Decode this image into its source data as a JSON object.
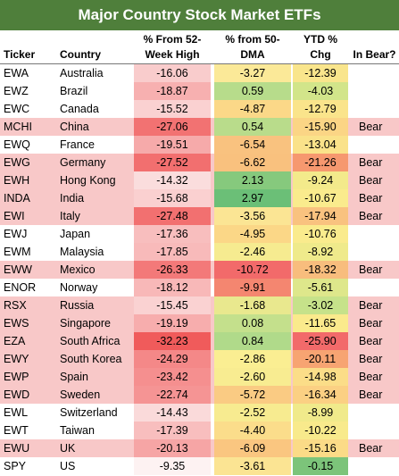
{
  "title": "Major Country Stock Market ETFs",
  "headers": {
    "ticker": "Ticker",
    "country": "Country",
    "from52": "% From 52-Week High",
    "from50": "% from 50-DMA",
    "ytd": "YTD % Chg",
    "bear": "In Bear?"
  },
  "rows": [
    {
      "ticker": "EWA",
      "country": "Australia",
      "from52": "-16.06",
      "from50": "-3.27",
      "ytd": "-12.39",
      "bear": "",
      "c52": "#f9cccc",
      "c50": "#fbe998",
      "cytd": "#f9e58c"
    },
    {
      "ticker": "EWZ",
      "country": "Brazil",
      "from52": "-18.87",
      "from50": "0.59",
      "ytd": "-4.03",
      "bear": "",
      "c52": "#f7b0b0",
      "c50": "#b7dc8b",
      "cytd": "#d2e58a"
    },
    {
      "ticker": "EWC",
      "country": "Canada",
      "from52": "-15.52",
      "from50": "-4.87",
      "ytd": "-12.79",
      "bear": "",
      "c52": "#fad1d1",
      "c50": "#fbd888",
      "cytd": "#fae48b"
    },
    {
      "ticker": "MCHI",
      "country": "China",
      "from52": "-27.06",
      "from50": "0.54",
      "ytd": "-15.90",
      "bear": "Bear",
      "c52": "#f27272",
      "c50": "#b9dc8b",
      "cytd": "#fbd585"
    },
    {
      "ticker": "EWQ",
      "country": "France",
      "from52": "-19.51",
      "from50": "-6.54",
      "ytd": "-13.04",
      "bear": "",
      "c52": "#f6aaaa",
      "c50": "#f9c27f",
      "cytd": "#fae28a"
    },
    {
      "ticker": "EWG",
      "country": "Germany",
      "from52": "-27.52",
      "from50": "-6.62",
      "ytd": "-21.26",
      "bear": "Bear",
      "c52": "#f26f6f",
      "c50": "#f9c17e",
      "cytd": "#f6986f"
    },
    {
      "ticker": "EWH",
      "country": "Hong Kong",
      "from52": "-14.32",
      "from50": "2.13",
      "ytd": "-9.24",
      "bear": "Bear",
      "c52": "#fadddd",
      "c50": "#86c97d",
      "cytd": "#f3ea8b"
    },
    {
      "ticker": "INDA",
      "country": "India",
      "from52": "-15.68",
      "from50": "2.97",
      "ytd": "-10.67",
      "bear": "Bear",
      "c52": "#fad0d0",
      "c50": "#6bbf77",
      "cytd": "#faeb8d"
    },
    {
      "ticker": "EWI",
      "country": "Italy",
      "from52": "-27.48",
      "from50": "-3.56",
      "ytd": "-17.94",
      "bear": "Bear",
      "c52": "#f27070",
      "c50": "#fbe594",
      "cytd": "#f9c27f"
    },
    {
      "ticker": "EWJ",
      "country": "Japan",
      "from52": "-17.36",
      "from50": "-4.95",
      "ytd": "-10.76",
      "bear": "",
      "c52": "#f8bebe",
      "c50": "#fbd787",
      "cytd": "#faeb8d"
    },
    {
      "ticker": "EWM",
      "country": "Malaysia",
      "from52": "-17.85",
      "from50": "-2.46",
      "ytd": "-8.92",
      "bear": "",
      "c52": "#f8baba",
      "c50": "#f6eb90",
      "cytd": "#efea8b"
    },
    {
      "ticker": "EWW",
      "country": "Mexico",
      "from52": "-26.33",
      "from50": "-10.72",
      "ytd": "-18.32",
      "bear": "Bear",
      "c52": "#f37979",
      "c50": "#f26a6a",
      "cytd": "#f8bd7d"
    },
    {
      "ticker": "ENOR",
      "country": "Norway",
      "from52": "-18.12",
      "from50": "-9.91",
      "ytd": "-5.61",
      "bear": "",
      "c52": "#f8b8b8",
      "c50": "#f48670",
      "cytd": "#dee78b"
    },
    {
      "ticker": "RSX",
      "country": "Russia",
      "from52": "-15.45",
      "from50": "-1.68",
      "ytd": "-3.02",
      "bear": "Bear",
      "c52": "#fad2d2",
      "c50": "#e9e88e",
      "cytd": "#c6e28a"
    },
    {
      "ticker": "EWS",
      "country": "Singapore",
      "from52": "-19.19",
      "from50": "0.08",
      "ytd": "-11.65",
      "bear": "Bear",
      "c52": "#f7adad",
      "c50": "#c4e08c",
      "cytd": "#faea8c"
    },
    {
      "ticker": "EZA",
      "country": "South Africa",
      "from52": "-32.23",
      "from50": "0.84",
      "ytd": "-25.90",
      "bear": "Bear",
      "c52": "#f05b5b",
      "c50": "#b0da8a",
      "cytd": "#f26a6a"
    },
    {
      "ticker": "EWY",
      "country": "South Korea",
      "from52": "-24.29",
      "from50": "-2.86",
      "ytd": "-20.11",
      "bear": "Bear",
      "c52": "#f48888",
      "c50": "#faee92",
      "cytd": "#f7a472"
    },
    {
      "ticker": "EWP",
      "country": "Spain",
      "from52": "-23.42",
      "from50": "-2.60",
      "ytd": "-14.98",
      "bear": "Bear",
      "c52": "#f58f8f",
      "c50": "#f8ec91",
      "cytd": "#fbdd88"
    },
    {
      "ticker": "EWD",
      "country": "Sweden",
      "from52": "-22.74",
      "from50": "-5.72",
      "ytd": "-16.34",
      "bear": "Bear",
      "c52": "#f59494",
      "c50": "#facb83",
      "cytd": "#fbd083"
    },
    {
      "ticker": "EWL",
      "country": "Switzerland",
      "from52": "-14.43",
      "from50": "-2.52",
      "ytd": "-8.99",
      "bear": "",
      "c52": "#fadada",
      "c50": "#f7eb90",
      "cytd": "#f0ea8b"
    },
    {
      "ticker": "EWT",
      "country": "Taiwan",
      "from52": "-17.39",
      "from50": "-4.40",
      "ytd": "-10.22",
      "bear": "",
      "c52": "#f8bebe",
      "c50": "#fbdd8b",
      "cytd": "#f8ea8c"
    },
    {
      "ticker": "EWU",
      "country": "UK",
      "from52": "-20.13",
      "from50": "-6.09",
      "ytd": "-15.16",
      "bear": "Bear",
      "c52": "#f6a5a5",
      "c50": "#fac680",
      "cytd": "#fbdb87"
    },
    {
      "ticker": "SPY",
      "country": "US",
      "from52": "-9.35",
      "from50": "-3.61",
      "ytd": "-0.15",
      "bear": "",
      "c52": "#fdf2f2",
      "c50": "#fbe493",
      "cytd": "#7cc47a"
    }
  ]
}
